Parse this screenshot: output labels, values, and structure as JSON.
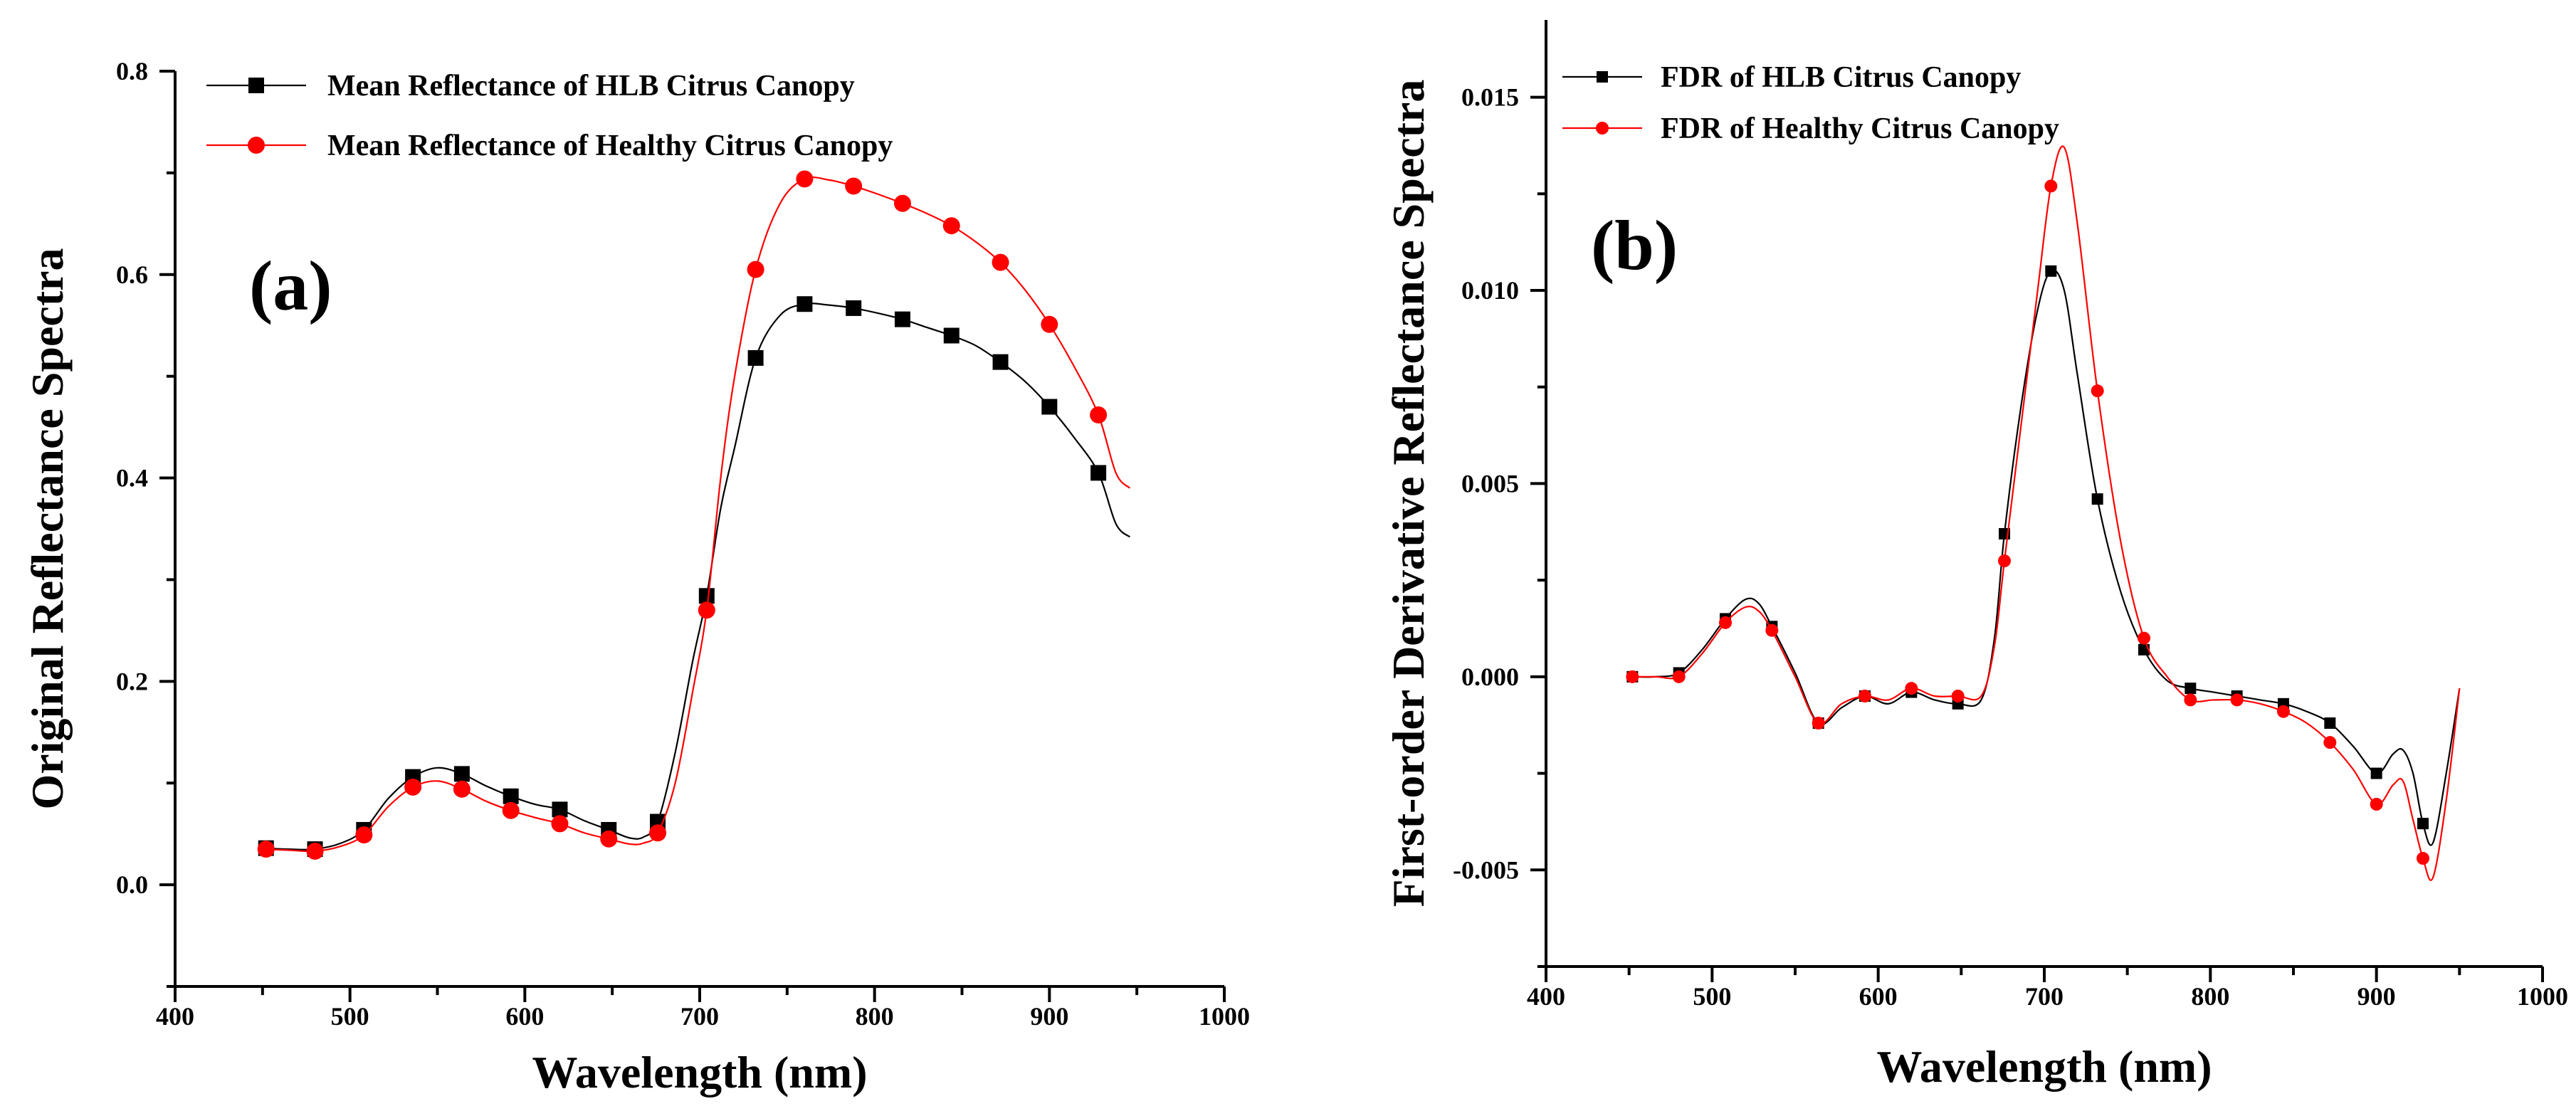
{
  "chart_data": [
    {
      "type": "line",
      "panel_label": "(a)",
      "xlabel": "Wavelength (nm)",
      "ylabel": "Original Reflectance Spectra",
      "xlim": [
        400,
        1000
      ],
      "ylim": [
        -0.1,
        0.8
      ],
      "xticks": [
        400,
        500,
        600,
        700,
        800,
        900,
        1000
      ],
      "xtick_labels": [
        "400",
        "500",
        "600",
        "700",
        "800",
        "900",
        "1000"
      ],
      "yticks": [
        0.0,
        0.2,
        0.4,
        0.6,
        0.8
      ],
      "ytick_labels": [
        "0.0",
        "0.2",
        "0.4",
        "0.6",
        "0.8"
      ],
      "legend_position": "top-left",
      "series": [
        {
          "name": "Mean Reflectance of HLB Citrus Canopy",
          "color": "#000000",
          "marker": "square",
          "curve_x": [
            450,
            465,
            480,
            495,
            508,
            522,
            536,
            550,
            564,
            578,
            592,
            606,
            620,
            634,
            648,
            660,
            668,
            676,
            686,
            696,
            704,
            712,
            720,
            732,
            746,
            760,
            774,
            788,
            802,
            816,
            830,
            844,
            858,
            872,
            886,
            900,
            914,
            928,
            938,
            946
          ],
          "curve_y": [
            0.036,
            0.035,
            0.035,
            0.041,
            0.054,
            0.085,
            0.106,
            0.115,
            0.109,
            0.097,
            0.087,
            0.079,
            0.074,
            0.063,
            0.054,
            0.046,
            0.047,
            0.062,
            0.13,
            0.22,
            0.284,
            0.37,
            0.43,
            0.518,
            0.56,
            0.571,
            0.57,
            0.567,
            0.562,
            0.556,
            0.548,
            0.54,
            0.53,
            0.514,
            0.495,
            0.47,
            0.44,
            0.405,
            0.355,
            0.342
          ],
          "marker_x": [
            452,
            480,
            508,
            536,
            564,
            592,
            620,
            648,
            676,
            704,
            732,
            760,
            788,
            816,
            844,
            872,
            900,
            928
          ],
          "marker_y": [
            0.036,
            0.035,
            0.054,
            0.106,
            0.109,
            0.087,
            0.074,
            0.054,
            0.062,
            0.284,
            0.518,
            0.571,
            0.567,
            0.556,
            0.54,
            0.514,
            0.47,
            0.405
          ]
        },
        {
          "name": "Mean Reflectance of Healthy Citrus Canopy",
          "color": "#ff0000",
          "marker": "circle",
          "curve_x": [
            450,
            465,
            480,
            495,
            508,
            522,
            536,
            550,
            564,
            578,
            592,
            606,
            620,
            634,
            648,
            660,
            668,
            676,
            686,
            696,
            704,
            712,
            720,
            732,
            746,
            760,
            774,
            788,
            802,
            816,
            830,
            844,
            858,
            872,
            886,
            900,
            914,
            928,
            938,
            946
          ],
          "curve_y": [
            0.035,
            0.034,
            0.033,
            0.038,
            0.049,
            0.077,
            0.096,
            0.102,
            0.094,
            0.082,
            0.073,
            0.066,
            0.06,
            0.051,
            0.045,
            0.04,
            0.041,
            0.051,
            0.1,
            0.19,
            0.27,
            0.4,
            0.5,
            0.605,
            0.67,
            0.694,
            0.693,
            0.687,
            0.679,
            0.67,
            0.66,
            0.648,
            0.632,
            0.612,
            0.585,
            0.551,
            0.51,
            0.462,
            0.405,
            0.39
          ],
          "marker_x": [
            452,
            480,
            508,
            536,
            564,
            592,
            620,
            648,
            676,
            704,
            732,
            760,
            788,
            816,
            844,
            872,
            900,
            928
          ],
          "marker_y": [
            0.035,
            0.033,
            0.049,
            0.096,
            0.094,
            0.073,
            0.06,
            0.045,
            0.051,
            0.27,
            0.605,
            0.694,
            0.687,
            0.67,
            0.648,
            0.612,
            0.551,
            0.462
          ]
        }
      ]
    },
    {
      "type": "line",
      "panel_label": "(b)",
      "xlabel": "Wavelength (nm)",
      "ylabel": "First-order Derivative Reflectance Spectra",
      "xlim": [
        400,
        1000
      ],
      "ylim": [
        -0.0075,
        0.017
      ],
      "xticks": [
        400,
        500,
        600,
        700,
        800,
        900,
        1000
      ],
      "xtick_labels": [
        "400",
        "500",
        "600",
        "700",
        "800",
        "900",
        "1000"
      ],
      "yticks": [
        -0.005,
        0.0,
        0.005,
        0.01,
        0.015
      ],
      "ytick_labels": [
        "-0.005",
        "0.000",
        "0.005",
        "0.010",
        "0.015"
      ],
      "legend_position": "top-left",
      "series": [
        {
          "name": "FDR of HLB Citrus Canopy",
          "color": "#000000",
          "marker": "square",
          "curve_x": [
            452,
            466,
            480,
            494,
            508,
            520,
            528,
            536,
            550,
            564,
            578,
            592,
            606,
            620,
            634,
            648,
            662,
            670,
            676,
            686,
            696,
            704,
            712,
            720,
            732,
            746,
            760,
            774,
            788,
            802,
            816,
            830,
            844,
            858,
            872,
            886,
            900,
            910,
            916,
            922,
            928,
            934,
            942,
            950
          ],
          "curve_y": [
            0.0,
            0.0,
            0.0001,
            0.0007,
            0.0015,
            0.002,
            0.0019,
            0.0013,
            0.0001,
            -0.0012,
            -0.0008,
            -0.0005,
            -0.0007,
            -0.0004,
            -0.0006,
            -0.0007,
            -0.0006,
            0.001,
            0.0037,
            0.007,
            0.0095,
            0.0105,
            0.01,
            0.0078,
            0.0046,
            0.0022,
            0.0007,
            -0.0001,
            -0.0003,
            -0.0004,
            -0.0005,
            -0.0006,
            -0.0007,
            -0.0009,
            -0.0012,
            -0.0018,
            -0.0025,
            -0.002,
            -0.0019,
            -0.0025,
            -0.0038,
            -0.0043,
            -0.0025,
            -0.0003
          ],
          "marker_x": [
            452,
            480,
            508,
            536,
            564,
            592,
            620,
            648,
            676,
            704,
            732,
            760,
            788,
            816,
            844,
            872,
            900,
            928
          ],
          "marker_y": [
            0.0,
            0.0001,
            0.0015,
            0.0013,
            -0.0012,
            -0.0005,
            -0.0004,
            -0.0007,
            0.0037,
            0.0105,
            0.0046,
            0.0007,
            -0.0003,
            -0.0005,
            -0.0007,
            -0.0012,
            -0.0025,
            -0.0038
          ]
        },
        {
          "name": "FDR of Healthy Citrus Canopy",
          "color": "#ff0000",
          "marker": "circle",
          "curve_x": [
            452,
            466,
            480,
            494,
            508,
            520,
            528,
            536,
            550,
            564,
            578,
            592,
            606,
            620,
            634,
            648,
            662,
            670,
            676,
            686,
            696,
            704,
            712,
            720,
            732,
            746,
            760,
            774,
            788,
            802,
            816,
            830,
            844,
            858,
            872,
            886,
            900,
            910,
            916,
            922,
            928,
            934,
            942,
            950
          ],
          "curve_y": [
            0.0,
            0.0,
            0.0,
            0.0006,
            0.0014,
            0.0018,
            0.0017,
            0.0012,
            0.0,
            -0.0012,
            -0.0007,
            -0.0005,
            -0.0006,
            -0.0003,
            -0.0005,
            -0.0005,
            -0.0005,
            0.0008,
            0.003,
            0.0065,
            0.01,
            0.0127,
            0.0137,
            0.0117,
            0.0074,
            0.0035,
            0.001,
            0.0,
            -0.0006,
            -0.0006,
            -0.0006,
            -0.0007,
            -0.0009,
            -0.0012,
            -0.0017,
            -0.0024,
            -0.0033,
            -0.0028,
            -0.0027,
            -0.0037,
            -0.0047,
            -0.0052,
            -0.0032,
            -0.0003
          ],
          "marker_x": [
            452,
            480,
            508,
            536,
            564,
            592,
            620,
            648,
            676,
            704,
            732,
            760,
            788,
            816,
            844,
            872,
            900,
            928
          ],
          "marker_y": [
            0.0,
            0.0,
            0.0014,
            0.0012,
            -0.0012,
            -0.0005,
            -0.0003,
            -0.0005,
            0.003,
            0.0127,
            0.0074,
            0.001,
            -0.0006,
            -0.0006,
            -0.0009,
            -0.0017,
            -0.0033,
            -0.0047
          ]
        }
      ]
    }
  ]
}
